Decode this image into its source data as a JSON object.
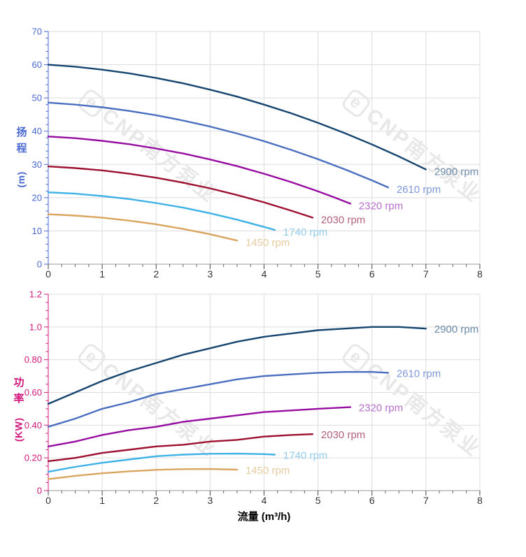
{
  "watermark": {
    "text": "CNP南方泵业",
    "logo_char": "e",
    "color": "#e8e8e8"
  },
  "chart_data": [
    {
      "type": "line",
      "id": "head-curve-chart",
      "title": "",
      "ylabel_cn": "扬程",
      "ylabel_unit": "(m)",
      "xlabel": "",
      "xlim": [
        0,
        8
      ],
      "ylim": [
        0,
        70
      ],
      "grid": true,
      "legend_position": "labels-at-line-ends",
      "axis_color": "#4a68d2",
      "x_tick_color": "#333333",
      "minor_x_step": 0.25,
      "minor_y_step": 2,
      "x_ticks": [
        {
          "v": 0,
          "label": "0"
        },
        {
          "v": 1,
          "label": "1"
        },
        {
          "v": 2,
          "label": "2"
        },
        {
          "v": 3,
          "label": "3"
        },
        {
          "v": 4,
          "label": "4"
        },
        {
          "v": 5,
          "label": "5"
        },
        {
          "v": 6,
          "label": "6"
        },
        {
          "v": 7,
          "label": "7"
        },
        {
          "v": 8,
          "label": "8"
        }
      ],
      "y_ticks": [
        {
          "v": 0,
          "label": "0"
        },
        {
          "v": 10,
          "label": "10"
        },
        {
          "v": 20,
          "label": "20"
        },
        {
          "v": 30,
          "label": "30"
        },
        {
          "v": 40,
          "label": "40"
        },
        {
          "v": 50,
          "label": "50"
        },
        {
          "v": 60,
          "label": "60"
        },
        {
          "v": 70,
          "label": "70"
        }
      ],
      "series": [
        {
          "name": "2900 rpm",
          "color": "#16456f",
          "label_color": "#6b8aa9",
          "points": [
            [
              0,
              60
            ],
            [
              0.5,
              59.4
            ],
            [
              1,
              58.5
            ],
            [
              1.5,
              57.4
            ],
            [
              2,
              56
            ],
            [
              2.5,
              54.4
            ],
            [
              3,
              52.5
            ],
            [
              3.5,
              50.4
            ],
            [
              4,
              48
            ],
            [
              4.5,
              45.4
            ],
            [
              5,
              42.5
            ],
            [
              5.5,
              39.4
            ],
            [
              6,
              36
            ],
            [
              6.5,
              32.4
            ],
            [
              7,
              28.5
            ]
          ]
        },
        {
          "name": "2610 rpm",
          "color": "#4a6fc0",
          "label_color": "#8099d8",
          "points": [
            [
              0,
              48.6
            ],
            [
              0.5,
              48
            ],
            [
              1,
              47.2
            ],
            [
              1.5,
              46.1
            ],
            [
              2,
              44.8
            ],
            [
              2.5,
              43.2
            ],
            [
              3,
              41.4
            ],
            [
              3.5,
              39.3
            ],
            [
              4,
              37
            ],
            [
              4.5,
              34.4
            ],
            [
              5,
              31.6
            ],
            [
              5.5,
              28.5
            ],
            [
              6,
              25.2
            ],
            [
              6.3,
              23.1
            ]
          ]
        },
        {
          "name": "2320 rpm",
          "color": "#970da1",
          "label_color": "#b56fc8",
          "points": [
            [
              0,
              38.4
            ],
            [
              0.5,
              37.9
            ],
            [
              1,
              37.1
            ],
            [
              1.5,
              36.1
            ],
            [
              2,
              34.8
            ],
            [
              2.5,
              33.3
            ],
            [
              3,
              31.5
            ],
            [
              3.5,
              29.5
            ],
            [
              4,
              27.2
            ],
            [
              4.5,
              24.7
            ],
            [
              5,
              21.9
            ],
            [
              5.3,
              20.1
            ],
            [
              5.6,
              18.2
            ]
          ]
        },
        {
          "name": "2030 rpm",
          "color": "#9e1030",
          "label_color": "#b2607a",
          "points": [
            [
              0,
              29.4
            ],
            [
              0.5,
              28.9
            ],
            [
              1,
              28.2
            ],
            [
              1.5,
              27.2
            ],
            [
              2,
              26
            ],
            [
              2.5,
              24.5
            ],
            [
              3,
              22.8
            ],
            [
              3.5,
              20.8
            ],
            [
              4,
              18.6
            ],
            [
              4.5,
              16.1
            ],
            [
              4.9,
              14
            ]
          ]
        },
        {
          "name": "1740 rpm",
          "color": "#3eb1e6",
          "label_color": "#93cdec",
          "points": [
            [
              0,
              21.6
            ],
            [
              0.5,
              21.2
            ],
            [
              1,
              20.5
            ],
            [
              1.5,
              19.6
            ],
            [
              2,
              18.4
            ],
            [
              2.5,
              17
            ],
            [
              3,
              15.3
            ],
            [
              3.5,
              13.4
            ],
            [
              4,
              11.2
            ],
            [
              4.2,
              10.3
            ]
          ]
        },
        {
          "name": "1450 rpm",
          "color": "#d9a55f",
          "label_color": "#e6cba1",
          "points": [
            [
              0,
              15
            ],
            [
              0.5,
              14.6
            ],
            [
              1,
              14
            ],
            [
              1.5,
              13.1
            ],
            [
              2,
              12
            ],
            [
              2.5,
              10.6
            ],
            [
              3,
              9
            ],
            [
              3.5,
              7.1
            ]
          ]
        }
      ]
    },
    {
      "type": "line",
      "id": "power-curve-chart",
      "title": "",
      "ylabel_cn": "功率",
      "ylabel_unit": "(KW)",
      "xlabel": "流量 (m³/h)",
      "xlim": [
        0,
        8
      ],
      "ylim": [
        0,
        1.2
      ],
      "grid": true,
      "legend_position": "labels-at-line-ends",
      "axis_color": "#d1197d",
      "x_tick_color": "#333333",
      "minor_x_step": 0.25,
      "minor_y_step": 0.05,
      "x_ticks": [
        {
          "v": 0,
          "label": "0"
        },
        {
          "v": 1,
          "label": "1"
        },
        {
          "v": 2,
          "label": "2"
        },
        {
          "v": 3,
          "label": "3"
        },
        {
          "v": 4,
          "label": "4"
        },
        {
          "v": 5,
          "label": "5"
        },
        {
          "v": 6,
          "label": "6"
        },
        {
          "v": 7,
          "label": "7"
        },
        {
          "v": 8,
          "label": "8"
        }
      ],
      "y_ticks": [
        {
          "v": 0,
          "label": "0"
        },
        {
          "v": 0.2,
          "label": "0.20"
        },
        {
          "v": 0.4,
          "label": "0.40"
        },
        {
          "v": 0.6,
          "label": "0.60"
        },
        {
          "v": 0.8,
          "label": "0.80"
        },
        {
          "v": 1,
          "label": "1.0"
        },
        {
          "v": 1.2,
          "label": "1.2"
        }
      ],
      "series": [
        {
          "name": "2900 rpm",
          "color": "#16456f",
          "label_color": "#6b8aa9",
          "points": [
            [
              0,
              0.53
            ],
            [
              0.5,
              0.6
            ],
            [
              1,
              0.67
            ],
            [
              1.5,
              0.73
            ],
            [
              2,
              0.78
            ],
            [
              2.5,
              0.83
            ],
            [
              3,
              0.87
            ],
            [
              3.5,
              0.91
            ],
            [
              4,
              0.94
            ],
            [
              4.5,
              0.96
            ],
            [
              5,
              0.98
            ],
            [
              5.5,
              0.99
            ],
            [
              6,
              1
            ],
            [
              6.5,
              1
            ],
            [
              7,
              0.99
            ]
          ]
        },
        {
          "name": "2610 rpm",
          "color": "#4a6fc0",
          "label_color": "#8099d8",
          "points": [
            [
              0,
              0.39
            ],
            [
              0.5,
              0.44
            ],
            [
              1,
              0.5
            ],
            [
              1.5,
              0.54
            ],
            [
              2,
              0.59
            ],
            [
              2.5,
              0.62
            ],
            [
              3,
              0.65
            ],
            [
              3.5,
              0.68
            ],
            [
              4,
              0.7
            ],
            [
              4.5,
              0.71
            ],
            [
              5,
              0.72
            ],
            [
              5.5,
              0.725
            ],
            [
              6,
              0.725
            ],
            [
              6.3,
              0.72
            ]
          ]
        },
        {
          "name": "2320 rpm",
          "color": "#970da1",
          "label_color": "#b56fc8",
          "points": [
            [
              0,
              0.27
            ],
            [
              0.5,
              0.3
            ],
            [
              1,
              0.34
            ],
            [
              1.5,
              0.37
            ],
            [
              2,
              0.39
            ],
            [
              2.5,
              0.42
            ],
            [
              3,
              0.44
            ],
            [
              3.5,
              0.46
            ],
            [
              4,
              0.48
            ],
            [
              4.5,
              0.49
            ],
            [
              5,
              0.5
            ],
            [
              5.6,
              0.51
            ]
          ]
        },
        {
          "name": "2030 rpm",
          "color": "#9e1030",
          "label_color": "#b2607a",
          "points": [
            [
              0,
              0.18
            ],
            [
              0.5,
              0.2
            ],
            [
              1,
              0.23
            ],
            [
              1.5,
              0.25
            ],
            [
              2,
              0.27
            ],
            [
              2.5,
              0.28
            ],
            [
              3,
              0.3
            ],
            [
              3.5,
              0.31
            ],
            [
              4,
              0.33
            ],
            [
              4.5,
              0.34
            ],
            [
              4.9,
              0.345
            ]
          ]
        },
        {
          "name": "1740 rpm",
          "color": "#3eb1e6",
          "label_color": "#93cdec",
          "points": [
            [
              0,
              0.115
            ],
            [
              0.5,
              0.145
            ],
            [
              1,
              0.17
            ],
            [
              1.5,
              0.19
            ],
            [
              2,
              0.21
            ],
            [
              2.5,
              0.22
            ],
            [
              3,
              0.225
            ],
            [
              3.5,
              0.226
            ],
            [
              4,
              0.223
            ],
            [
              4.2,
              0.22
            ]
          ]
        },
        {
          "name": "1450 rpm",
          "color": "#d9a55f",
          "label_color": "#e6cba1",
          "points": [
            [
              0,
              0.07
            ],
            [
              0.5,
              0.09
            ],
            [
              1,
              0.106
            ],
            [
              1.5,
              0.118
            ],
            [
              2,
              0.127
            ],
            [
              2.5,
              0.131
            ],
            [
              3,
              0.132
            ],
            [
              3.5,
              0.128
            ]
          ]
        }
      ]
    }
  ]
}
